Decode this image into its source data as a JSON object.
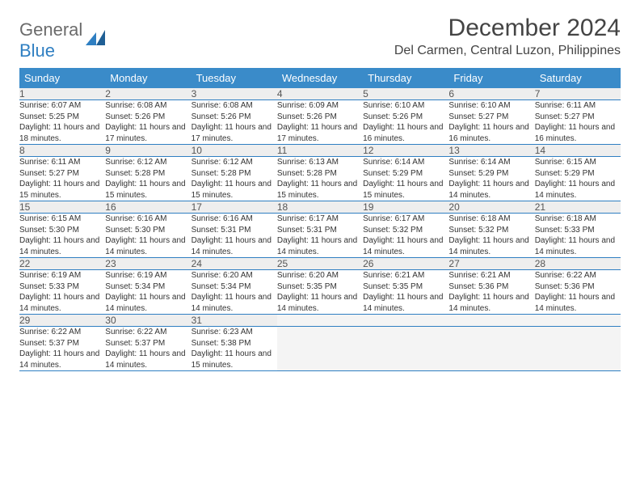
{
  "logo": {
    "general": "General",
    "blue": "Blue"
  },
  "title": "December 2024",
  "location": "Del Carmen, Central Luzon, Philippines",
  "colors": {
    "header_bg": "#3a8bc9",
    "header_text": "#ffffff",
    "daynum_bg": "#eeeeee",
    "border": "#2f7fc2",
    "logo_gray": "#6b6b6b",
    "logo_blue": "#2f7fc2"
  },
  "weekdays": [
    "Sunday",
    "Monday",
    "Tuesday",
    "Wednesday",
    "Thursday",
    "Friday",
    "Saturday"
  ],
  "weeks": [
    [
      {
        "n": "1",
        "sr": "6:07 AM",
        "ss": "5:25 PM",
        "dl": "11 hours and 18 minutes."
      },
      {
        "n": "2",
        "sr": "6:08 AM",
        "ss": "5:26 PM",
        "dl": "11 hours and 17 minutes."
      },
      {
        "n": "3",
        "sr": "6:08 AM",
        "ss": "5:26 PM",
        "dl": "11 hours and 17 minutes."
      },
      {
        "n": "4",
        "sr": "6:09 AM",
        "ss": "5:26 PM",
        "dl": "11 hours and 17 minutes."
      },
      {
        "n": "5",
        "sr": "6:10 AM",
        "ss": "5:26 PM",
        "dl": "11 hours and 16 minutes."
      },
      {
        "n": "6",
        "sr": "6:10 AM",
        "ss": "5:27 PM",
        "dl": "11 hours and 16 minutes."
      },
      {
        "n": "7",
        "sr": "6:11 AM",
        "ss": "5:27 PM",
        "dl": "11 hours and 16 minutes."
      }
    ],
    [
      {
        "n": "8",
        "sr": "6:11 AM",
        "ss": "5:27 PM",
        "dl": "11 hours and 15 minutes."
      },
      {
        "n": "9",
        "sr": "6:12 AM",
        "ss": "5:28 PM",
        "dl": "11 hours and 15 minutes."
      },
      {
        "n": "10",
        "sr": "6:12 AM",
        "ss": "5:28 PM",
        "dl": "11 hours and 15 minutes."
      },
      {
        "n": "11",
        "sr": "6:13 AM",
        "ss": "5:28 PM",
        "dl": "11 hours and 15 minutes."
      },
      {
        "n": "12",
        "sr": "6:14 AM",
        "ss": "5:29 PM",
        "dl": "11 hours and 15 minutes."
      },
      {
        "n": "13",
        "sr": "6:14 AM",
        "ss": "5:29 PM",
        "dl": "11 hours and 14 minutes."
      },
      {
        "n": "14",
        "sr": "6:15 AM",
        "ss": "5:29 PM",
        "dl": "11 hours and 14 minutes."
      }
    ],
    [
      {
        "n": "15",
        "sr": "6:15 AM",
        "ss": "5:30 PM",
        "dl": "11 hours and 14 minutes."
      },
      {
        "n": "16",
        "sr": "6:16 AM",
        "ss": "5:30 PM",
        "dl": "11 hours and 14 minutes."
      },
      {
        "n": "17",
        "sr": "6:16 AM",
        "ss": "5:31 PM",
        "dl": "11 hours and 14 minutes."
      },
      {
        "n": "18",
        "sr": "6:17 AM",
        "ss": "5:31 PM",
        "dl": "11 hours and 14 minutes."
      },
      {
        "n": "19",
        "sr": "6:17 AM",
        "ss": "5:32 PM",
        "dl": "11 hours and 14 minutes."
      },
      {
        "n": "20",
        "sr": "6:18 AM",
        "ss": "5:32 PM",
        "dl": "11 hours and 14 minutes."
      },
      {
        "n": "21",
        "sr": "6:18 AM",
        "ss": "5:33 PM",
        "dl": "11 hours and 14 minutes."
      }
    ],
    [
      {
        "n": "22",
        "sr": "6:19 AM",
        "ss": "5:33 PM",
        "dl": "11 hours and 14 minutes."
      },
      {
        "n": "23",
        "sr": "6:19 AM",
        "ss": "5:34 PM",
        "dl": "11 hours and 14 minutes."
      },
      {
        "n": "24",
        "sr": "6:20 AM",
        "ss": "5:34 PM",
        "dl": "11 hours and 14 minutes."
      },
      {
        "n": "25",
        "sr": "6:20 AM",
        "ss": "5:35 PM",
        "dl": "11 hours and 14 minutes."
      },
      {
        "n": "26",
        "sr": "6:21 AM",
        "ss": "5:35 PM",
        "dl": "11 hours and 14 minutes."
      },
      {
        "n": "27",
        "sr": "6:21 AM",
        "ss": "5:36 PM",
        "dl": "11 hours and 14 minutes."
      },
      {
        "n": "28",
        "sr": "6:22 AM",
        "ss": "5:36 PM",
        "dl": "11 hours and 14 minutes."
      }
    ],
    [
      {
        "n": "29",
        "sr": "6:22 AM",
        "ss": "5:37 PM",
        "dl": "11 hours and 14 minutes."
      },
      {
        "n": "30",
        "sr": "6:22 AM",
        "ss": "5:37 PM",
        "dl": "11 hours and 14 minutes."
      },
      {
        "n": "31",
        "sr": "6:23 AM",
        "ss": "5:38 PM",
        "dl": "11 hours and 15 minutes."
      },
      null,
      null,
      null,
      null
    ]
  ],
  "labels": {
    "sunrise": "Sunrise:",
    "sunset": "Sunset:",
    "daylight": "Daylight:"
  }
}
